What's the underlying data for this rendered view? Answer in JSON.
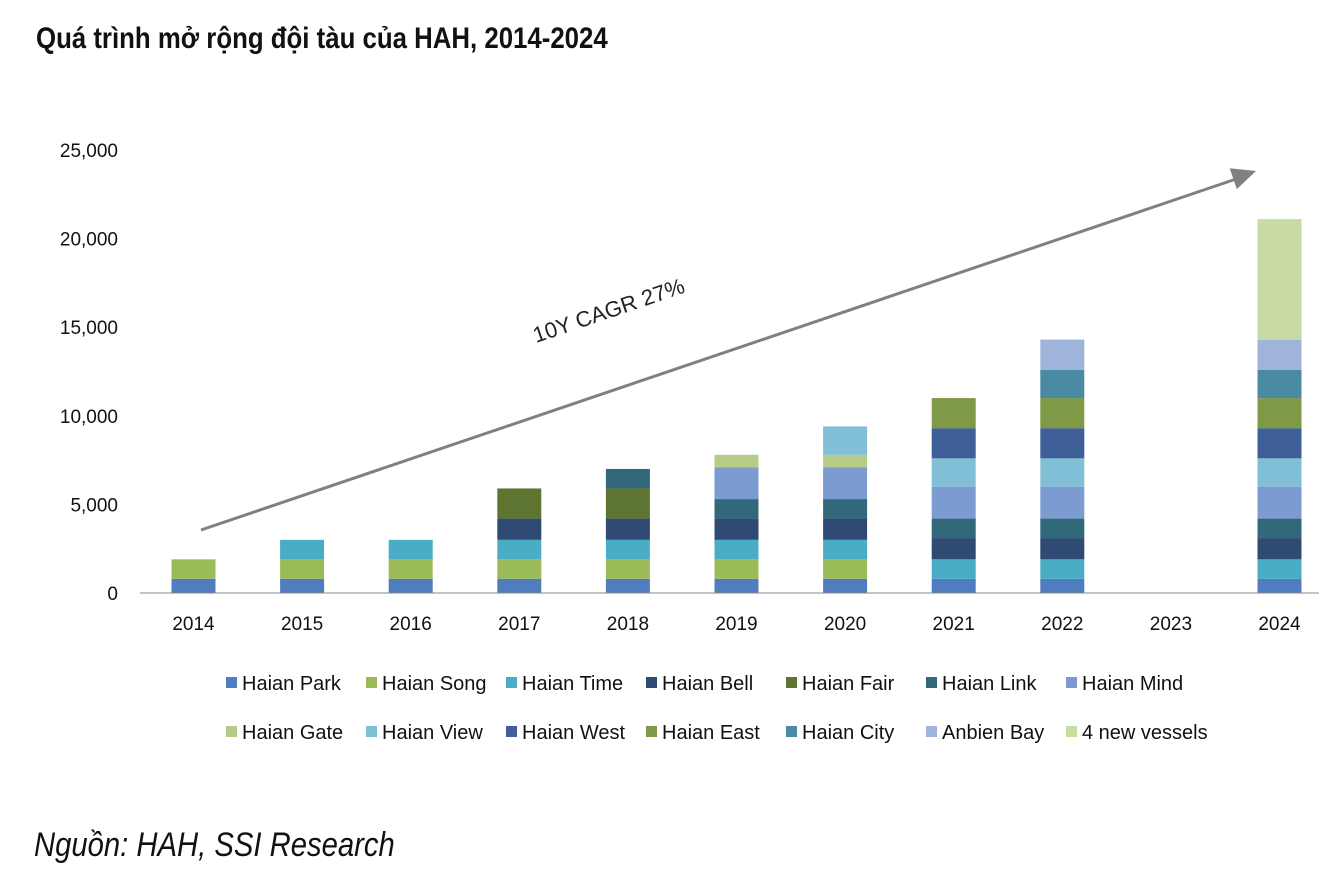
{
  "header": {
    "title": "Quá trình mở rộng đội tàu của HAH, 2014-2024"
  },
  "footer": {
    "source": "Nguồn: HAH, SSI Research"
  },
  "chart_data": {
    "type": "bar",
    "stacked": true,
    "title": "Quá trình mở rộng đội tàu của HAH, 2014-2024",
    "xlabel": "",
    "ylabel": "",
    "ylim": [
      0,
      25000
    ],
    "yticks": [
      0,
      5000,
      10000,
      15000,
      20000,
      25000
    ],
    "ytick_labels": [
      "0",
      "5,000",
      "10,000",
      "15,000",
      "20,000",
      "25,000"
    ],
    "grid": false,
    "legend_position": "bottom",
    "categories": [
      "2014",
      "2015",
      "2016",
      "2017",
      "2018",
      "2019",
      "2020",
      "2021",
      "2022",
      "2023",
      "2024"
    ],
    "series": [
      {
        "name": "Haian Park",
        "color": "#4f7dc0",
        "values": [
          800,
          800,
          800,
          800,
          800,
          800,
          800,
          800,
          800,
          0,
          800
        ]
      },
      {
        "name": "Haian Song",
        "color": "#9bbb59",
        "values": [
          1100,
          1100,
          1100,
          1100,
          1100,
          1100,
          1100,
          0,
          0,
          0,
          0
        ]
      },
      {
        "name": "Haian Time",
        "color": "#4bacc6",
        "values": [
          0,
          1100,
          1100,
          1100,
          1100,
          1100,
          1100,
          1100,
          1100,
          0,
          1100
        ]
      },
      {
        "name": "Haian Bell",
        "color": "#2f4a73",
        "values": [
          0,
          0,
          0,
          1200,
          1200,
          1200,
          1200,
          1200,
          1200,
          0,
          1200
        ]
      },
      {
        "name": "Haian Fair",
        "color": "#5e7532",
        "values": [
          0,
          0,
          0,
          1700,
          1700,
          0,
          0,
          0,
          0,
          0,
          0
        ]
      },
      {
        "name": "Haian Link",
        "color": "#31697a",
        "values": [
          0,
          0,
          0,
          0,
          1100,
          1100,
          1100,
          1100,
          1100,
          0,
          1100
        ]
      },
      {
        "name": "Haian Mind",
        "color": "#7c9bd1",
        "values": [
          0,
          0,
          0,
          0,
          0,
          1800,
          1800,
          1800,
          1800,
          0,
          1800
        ]
      },
      {
        "name": "Haian Gate",
        "color": "#b4cc85",
        "values": [
          0,
          0,
          0,
          0,
          0,
          700,
          700,
          0,
          0,
          0,
          0
        ]
      },
      {
        "name": "Haian View",
        "color": "#80bfd6",
        "values": [
          0,
          0,
          0,
          0,
          0,
          0,
          1600,
          1600,
          1600,
          0,
          1600
        ]
      },
      {
        "name": "Haian West",
        "color": "#3f5f99",
        "values": [
          0,
          0,
          0,
          0,
          0,
          0,
          0,
          1700,
          1700,
          0,
          1700
        ]
      },
      {
        "name": "Haian East",
        "color": "#7f9a47",
        "values": [
          0,
          0,
          0,
          0,
          0,
          0,
          0,
          1700,
          1700,
          0,
          1700
        ]
      },
      {
        "name": "Haian City",
        "color": "#4a8aa3",
        "values": [
          0,
          0,
          0,
          0,
          0,
          0,
          0,
          0,
          1600,
          0,
          1600
        ]
      },
      {
        "name": "Anbien Bay",
        "color": "#9fb4da",
        "values": [
          0,
          0,
          0,
          0,
          0,
          0,
          0,
          0,
          1700,
          0,
          1700
        ]
      },
      {
        "name": "4 new vessels",
        "color": "#c8dba4",
        "values": [
          0,
          0,
          0,
          0,
          0,
          0,
          0,
          0,
          0,
          0,
          6800
        ]
      }
    ],
    "annotation": {
      "text": "10Y CAGR 27%",
      "arrow_color": "#808080"
    }
  }
}
